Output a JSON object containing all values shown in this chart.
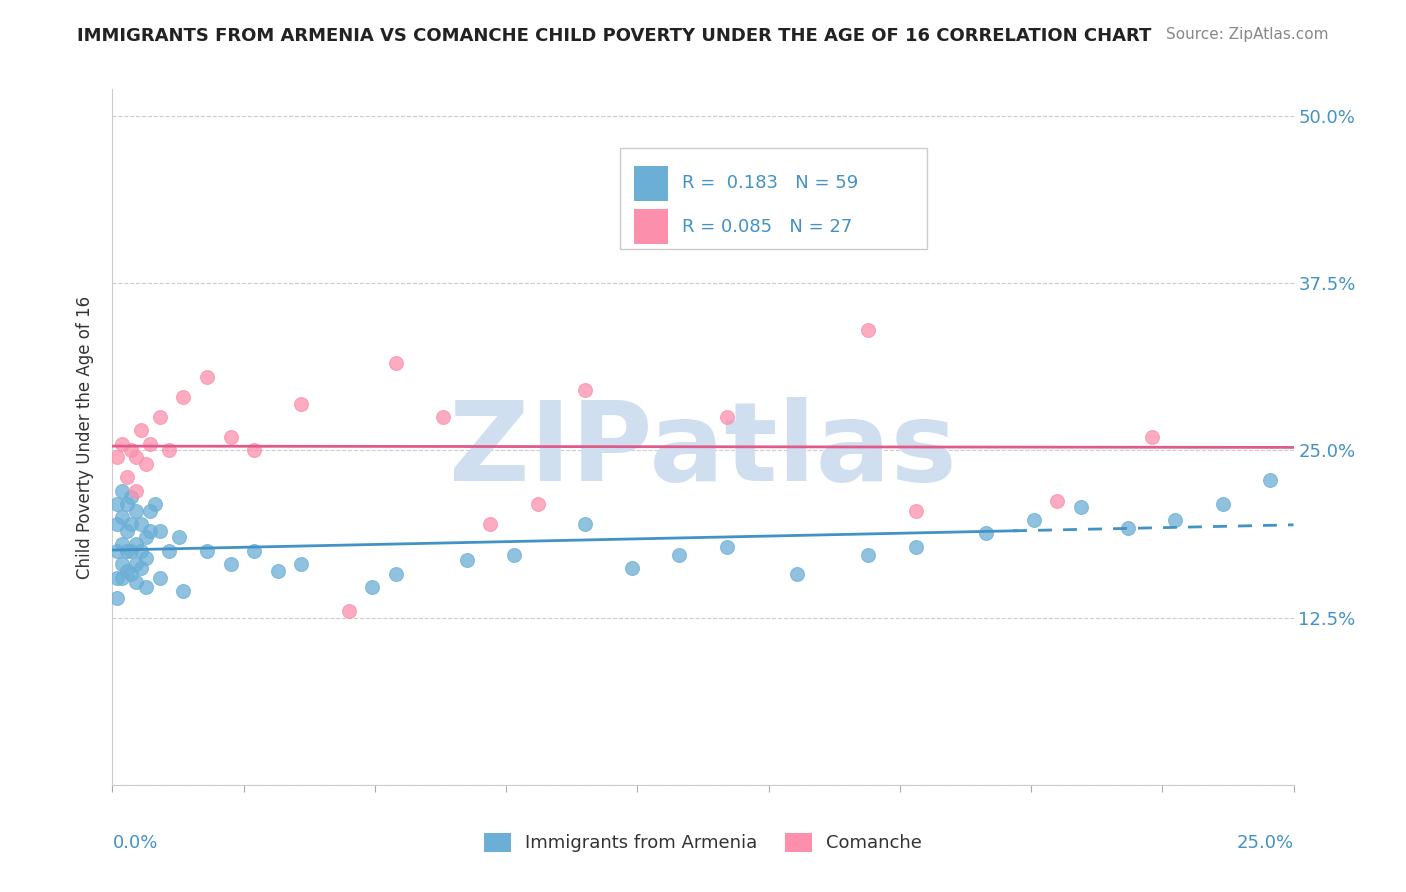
{
  "title": "IMMIGRANTS FROM ARMENIA VS COMANCHE CHILD POVERTY UNDER THE AGE OF 16 CORRELATION CHART",
  "source": "Source: ZipAtlas.com",
  "ylabel": "Child Poverty Under the Age of 16",
  "xlim": [
    0,
    0.25
  ],
  "ylim": [
    0,
    0.52
  ],
  "yticks": [
    0,
    0.125,
    0.25,
    0.375,
    0.5
  ],
  "ytick_labels": [
    "",
    "12.5%",
    "25.0%",
    "37.5%",
    "50.0%"
  ],
  "legend_text1": "R =  0.183   N = 59",
  "legend_text2": "R = 0.085   N = 27",
  "blue_color": "#6baed6",
  "pink_color": "#fc8fac",
  "blue_line_color": "#4292c6",
  "pink_line_color": "#e05a8a",
  "watermark": "ZIPatlas",
  "watermark_color": "#d0dff0",
  "blue_scatter_x": [
    0.001,
    0.001,
    0.001,
    0.002,
    0.002,
    0.002,
    0.002,
    0.003,
    0.003,
    0.003,
    0.004,
    0.004,
    0.004,
    0.005,
    0.005,
    0.005,
    0.006,
    0.006,
    0.007,
    0.007,
    0.008,
    0.008,
    0.009,
    0.01,
    0.012,
    0.014,
    0.02,
    0.025,
    0.03,
    0.035,
    0.04,
    0.055,
    0.06,
    0.075,
    0.085,
    0.1,
    0.11,
    0.12,
    0.13,
    0.145,
    0.16,
    0.17,
    0.185,
    0.195,
    0.205,
    0.215,
    0.225,
    0.235,
    0.245,
    0.001,
    0.001,
    0.002,
    0.003,
    0.004,
    0.005,
    0.006,
    0.007,
    0.01,
    0.015
  ],
  "blue_scatter_y": [
    0.195,
    0.21,
    0.175,
    0.2,
    0.22,
    0.18,
    0.165,
    0.21,
    0.19,
    0.175,
    0.215,
    0.195,
    0.175,
    0.205,
    0.18,
    0.165,
    0.195,
    0.175,
    0.185,
    0.17,
    0.205,
    0.19,
    0.21,
    0.19,
    0.175,
    0.185,
    0.175,
    0.165,
    0.175,
    0.16,
    0.165,
    0.148,
    0.158,
    0.168,
    0.172,
    0.195,
    0.162,
    0.172,
    0.178,
    0.158,
    0.172,
    0.178,
    0.188,
    0.198,
    0.208,
    0.192,
    0.198,
    0.21,
    0.228,
    0.155,
    0.14,
    0.155,
    0.16,
    0.158,
    0.152,
    0.162,
    0.148,
    0.155,
    0.145
  ],
  "pink_scatter_x": [
    0.001,
    0.002,
    0.003,
    0.004,
    0.005,
    0.005,
    0.006,
    0.007,
    0.008,
    0.01,
    0.012,
    0.015,
    0.02,
    0.025,
    0.03,
    0.04,
    0.05,
    0.06,
    0.07,
    0.08,
    0.09,
    0.1,
    0.13,
    0.16,
    0.2,
    0.22,
    0.17
  ],
  "pink_scatter_y": [
    0.245,
    0.255,
    0.23,
    0.25,
    0.22,
    0.245,
    0.265,
    0.24,
    0.255,
    0.275,
    0.25,
    0.29,
    0.305,
    0.26,
    0.25,
    0.285,
    0.13,
    0.315,
    0.275,
    0.195,
    0.21,
    0.295,
    0.275,
    0.34,
    0.212,
    0.26,
    0.205
  ]
}
